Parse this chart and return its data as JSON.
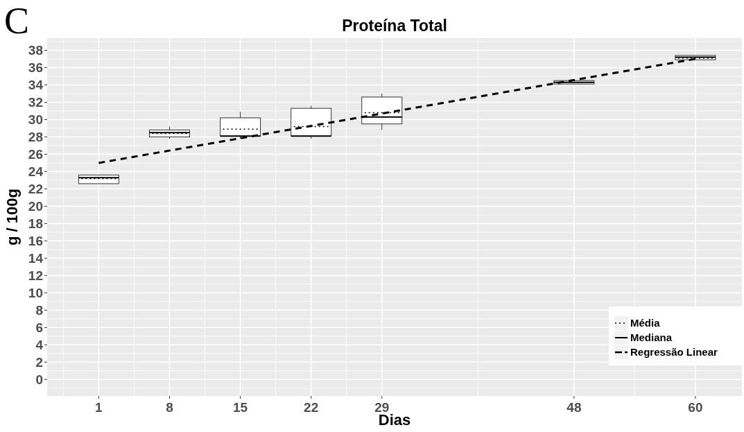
{
  "chart_data": {
    "type": "box",
    "title": "Proteína Total",
    "xlabel": "Dias",
    "ylabel": "g / 100g",
    "annotations": [
      "C",
      "Média"
    ],
    "xlim": [
      -4.1,
      64.6
    ],
    "xticks": [
      1,
      8,
      15,
      22,
      29,
      48,
      60
    ],
    "ylim": [
      -1.9,
      39.4
    ],
    "yticks": [
      0,
      2,
      4,
      6,
      8,
      10,
      12,
      14,
      16,
      18,
      20,
      22,
      24,
      26,
      28,
      30,
      32,
      34,
      36,
      38
    ],
    "grid": true,
    "legend": "bottom right",
    "series": [
      {
        "name": "Mediana",
        "x": [
          1,
          8,
          15,
          22,
          29,
          48,
          60
        ],
        "boxes": [
          {
            "low": 22.6,
            "q1": 22.6,
            "median": 23.3,
            "q3": 23.6,
            "high": 23.6,
            "mean": 23.2
          },
          {
            "low": 27.8,
            "q1": 28.0,
            "median": 28.5,
            "q3": 28.8,
            "high": 29.2,
            "mean": 28.4
          },
          {
            "low": 27.8,
            "q1": 28.1,
            "median": 28.1,
            "q3": 30.2,
            "high": 30.9,
            "mean": 28.9
          },
          {
            "low": 27.8,
            "q1": 28.1,
            "median": 28.1,
            "q3": 31.3,
            "high": 31.6,
            "mean": 29.2
          },
          {
            "low": 28.8,
            "q1": 29.5,
            "median": 30.3,
            "q3": 32.6,
            "high": 33.0,
            "mean": 30.8
          },
          {
            "low": 34.1,
            "q1": 34.1,
            "median": 34.3,
            "q3": 34.5,
            "high": 34.5,
            "mean": 34.3
          },
          {
            "low": 36.9,
            "q1": 36.9,
            "median": 37.2,
            "q3": 37.4,
            "high": 37.4,
            "mean": 37.1
          }
        ]
      },
      {
        "type": "line",
        "name": "Regressão Linear",
        "x": [
          1,
          60
        ],
        "values": [
          25.0,
          37.0
        ],
        "line_style": "dashed",
        "color": "#000000"
      }
    ]
  }
}
